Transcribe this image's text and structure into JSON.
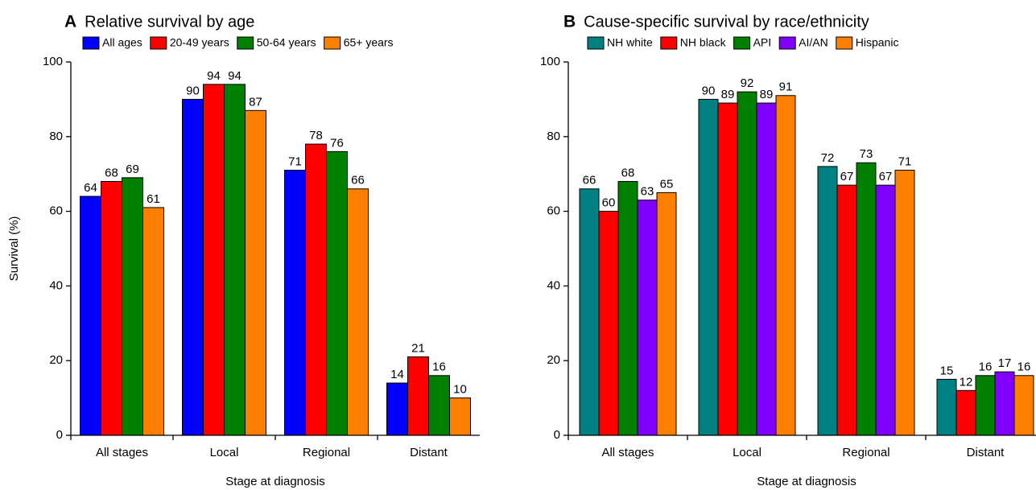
{
  "chart_data": [
    {
      "type": "bar",
      "panel": "A",
      "title": "Relative survival by age",
      "x_label": "Stage at diagnosis",
      "y_label": "Survival (%)",
      "categories": [
        "All stages",
        "Local",
        "Regional",
        "Distant"
      ],
      "series": [
        {
          "name": "All ages",
          "color": "#0000ff",
          "values": [
            64,
            90,
            71,
            14
          ]
        },
        {
          "name": "20-49 years",
          "color": "#ff0000",
          "values": [
            68,
            94,
            78,
            21
          ]
        },
        {
          "name": "50-64 years",
          "color": "#008000",
          "values": [
            69,
            94,
            76,
            16
          ]
        },
        {
          "name": "65+ years",
          "color": "#ff8000",
          "values": [
            61,
            87,
            66,
            10
          ]
        }
      ],
      "ylim": [
        0,
        100
      ],
      "yticks": [
        0,
        20,
        40,
        60,
        80,
        100
      ]
    },
    {
      "type": "bar",
      "panel": "B",
      "title": "Cause-specific survival by race/ethnicity",
      "x_label": "Stage at diagnosis",
      "categories": [
        "All stages",
        "Local",
        "Regional",
        "Distant"
      ],
      "series": [
        {
          "name": "NH white",
          "color": "#008080",
          "values": [
            66,
            90,
            72,
            15
          ]
        },
        {
          "name": "NH black",
          "color": "#ff0000",
          "values": [
            60,
            89,
            67,
            12
          ]
        },
        {
          "name": "API",
          "color": "#008000",
          "values": [
            68,
            92,
            73,
            16
          ]
        },
        {
          "name": "AI/AN",
          "color": "#8000ff",
          "values": [
            63,
            89,
            67,
            17
          ]
        },
        {
          "name": "Hispanic",
          "color": "#ff8000",
          "values": [
            65,
            91,
            71,
            16
          ]
        }
      ],
      "ylim": [
        0,
        100
      ],
      "yticks": [
        0,
        20,
        40,
        60,
        80,
        100
      ]
    }
  ]
}
